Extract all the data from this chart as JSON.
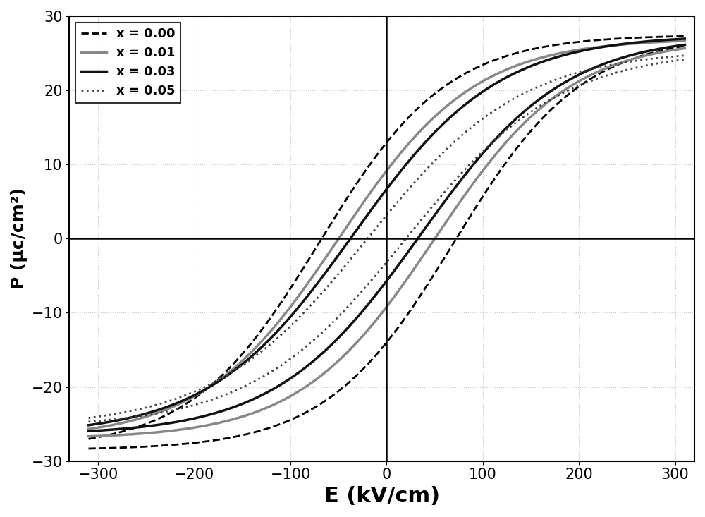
{
  "title": "",
  "xlabel": "E (kV/cm)",
  "ylabel": "P (μc/cm²)",
  "xlim": [
    -330,
    320
  ],
  "ylim": [
    -30,
    30
  ],
  "xticks": [
    -300,
    -200,
    -100,
    0,
    100,
    200,
    300
  ],
  "yticks": [
    -30,
    -20,
    -10,
    0,
    10,
    20,
    30
  ],
  "xlabel_fontsize": 22,
  "ylabel_fontsize": 18,
  "tick_fontsize": 15,
  "legend_fontsize": 13,
  "grid_color": "#c8c8c8",
  "grid_linestyle": ":",
  "background_color": "#ffffff",
  "series": [
    {
      "label": "x = 0.00",
      "color": "#000000",
      "linestyle": "dashed",
      "linewidth": 2.0,
      "Pmax": 27.5,
      "Pmin": -28.5,
      "E_scale": 120,
      "shift_upper": 70,
      "shift_lower": -70,
      "n": 1.8
    },
    {
      "label": "x = 0.01",
      "color": "#888888",
      "linestyle": "solid",
      "linewidth": 2.5,
      "Pmax": 27.0,
      "Pmin": -27.0,
      "E_scale": 120,
      "shift_upper": 50,
      "shift_lower": -50,
      "n": 1.7
    },
    {
      "label": "x = 0.03",
      "color": "#111111",
      "linestyle": "solid",
      "linewidth": 2.5,
      "Pmax": 27.5,
      "Pmin": -26.5,
      "E_scale": 120,
      "shift_upper": 35,
      "shift_lower": -35,
      "n": 1.6
    },
    {
      "label": "x = 0.05",
      "color": "#444444",
      "linestyle": "dotted",
      "linewidth": 2.0,
      "Pmax": 25.5,
      "Pmin": -25.5,
      "E_scale": 120,
      "shift_upper": 20,
      "shift_lower": -20,
      "n": 1.5
    }
  ]
}
